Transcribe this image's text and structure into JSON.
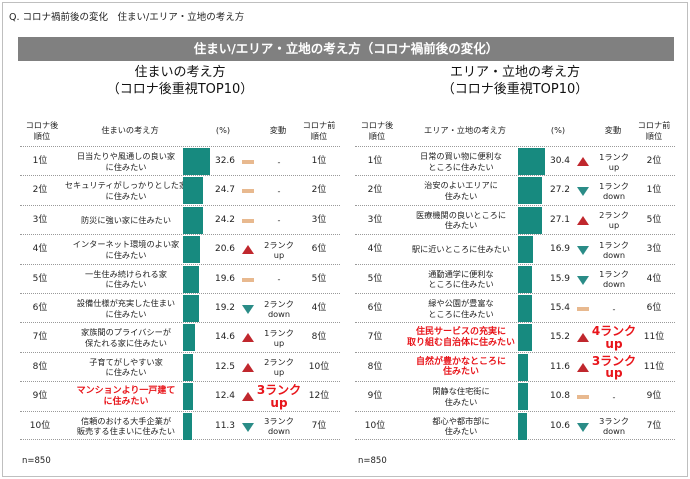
{
  "question": "Q. コロナ禍前後の変化　住まい/エリア・立地の考え方",
  "banner": "住まい/エリア・立地の考え方（コロナ禍前後の変化）",
  "colors": {
    "bar": "#178a7f",
    "up": "#c0272d",
    "down": "#2a8c87",
    "same": "#e8b98f",
    "highlight": "#e8151b",
    "banner_bg": "#808080"
  },
  "icons": {
    "up": "triangle-up-icon",
    "down": "triangle-down-icon",
    "same": "flat-bar-icon"
  },
  "headers": {
    "rank": "コロナ後 順位",
    "item_left": "住まいの考え方",
    "item_right": "エリア・立地の考え方",
    "pct": "(%)",
    "change": "変動",
    "prev": "コロナ前 順位"
  },
  "chart_data": [
    {
      "type": "bar",
      "title_line1": "住まいの考え方",
      "title_line2": "（コロナ後重視TOP10）",
      "n": "n=850",
      "xlim": [
        0,
        32.6
      ],
      "rows": [
        {
          "rank": "1位",
          "label": "日当たりや風通しの良い家 に住みたい",
          "value": 32.6,
          "value_label": "32.6",
          "trend": "same",
          "change": "-",
          "prev": "1位",
          "highlight": false
        },
        {
          "rank": "2位",
          "label": "セキュリティがしっかりとした家 に住みたい",
          "value": 24.7,
          "value_label": "24.7",
          "trend": "same",
          "change": "-",
          "prev": "2位",
          "highlight": false
        },
        {
          "rank": "3位",
          "label": "防災に強い家に住みたい",
          "value": 24.2,
          "value_label": "24.2",
          "trend": "same",
          "change": "-",
          "prev": "3位",
          "highlight": false
        },
        {
          "rank": "4位",
          "label": "インターネット環境のよい家 に住みたい",
          "value": 20.6,
          "value_label": "20.6",
          "trend": "up",
          "change": "2ランク up",
          "prev": "6位",
          "highlight": false
        },
        {
          "rank": "5位",
          "label": "一生住み続けられる家 に住みたい",
          "value": 19.6,
          "value_label": "19.6",
          "trend": "same",
          "change": "-",
          "prev": "5位",
          "highlight": false
        },
        {
          "rank": "6位",
          "label": "設備仕様が充実した住まい に住みたい",
          "value": 19.2,
          "value_label": "19.2",
          "trend": "down",
          "change": "2ランク down",
          "prev": "4位",
          "highlight": false
        },
        {
          "rank": "7位",
          "label": "家族間のプライバシーが 保たれる家に住みたい",
          "value": 14.6,
          "value_label": "14.6",
          "trend": "up",
          "change": "1ランク up",
          "prev": "8位",
          "highlight": false
        },
        {
          "rank": "8位",
          "label": "子育てがしやすい家 に住みたい",
          "value": 12.5,
          "value_label": "12.5",
          "trend": "up",
          "change": "2ランク up",
          "prev": "10位",
          "highlight": false
        },
        {
          "rank": "9位",
          "label": "マンションより一戸建て に住みたい",
          "value": 12.4,
          "value_label": "12.4",
          "trend": "up",
          "change": "3ランク up",
          "prev": "12位",
          "highlight": true
        },
        {
          "rank": "10位",
          "label": "信頼のおける大手企業が 販売する住まいに住みたい",
          "value": 11.3,
          "value_label": "11.3",
          "trend": "down",
          "change": "3ランク down",
          "prev": "7位",
          "highlight": false
        }
      ]
    },
    {
      "type": "bar",
      "title_line1": "エリア・立地の考え方",
      "title_line2": "（コロナ後重視TOP10）",
      "n": "n=850",
      "xlim": [
        0,
        30.4
      ],
      "rows": [
        {
          "rank": "1位",
          "label": "日常の買い物に便利な ところに住みたい",
          "value": 30.4,
          "value_label": "30.4",
          "trend": "up",
          "change": "1ランク up",
          "prev": "2位",
          "highlight": false
        },
        {
          "rank": "2位",
          "label": "治安のよいエリアに 住みたい",
          "value": 27.2,
          "value_label": "27.2",
          "trend": "down",
          "change": "1ランク down",
          "prev": "1位",
          "highlight": false
        },
        {
          "rank": "3位",
          "label": "医療機関の良いところに 住みたい",
          "value": 27.1,
          "value_label": "27.1",
          "trend": "up",
          "change": "2ランク up",
          "prev": "5位",
          "highlight": false
        },
        {
          "rank": "4位",
          "label": "駅に近いところに住みたい",
          "value": 16.9,
          "value_label": "16.9",
          "trend": "down",
          "change": "1ランク down",
          "prev": "3位",
          "highlight": false
        },
        {
          "rank": "5位",
          "label": "通勤通学に便利な ところに住みたい",
          "value": 15.9,
          "value_label": "15.9",
          "trend": "down",
          "change": "1ランク down",
          "prev": "4位",
          "highlight": false
        },
        {
          "rank": "6位",
          "label": "緑や公園が豊富な ところに住みたい",
          "value": 15.4,
          "value_label": "15.4",
          "trend": "same",
          "change": "-",
          "prev": "6位",
          "highlight": false
        },
        {
          "rank": "7位",
          "label": "住民サービスの充実に 取り組む自治体に住みたい",
          "value": 15.2,
          "value_label": "15.2",
          "trend": "up",
          "change": "4ランク up",
          "prev": "11位",
          "highlight": true
        },
        {
          "rank": "8位",
          "label": "自然が豊かなところに 住みたい",
          "value": 11.6,
          "value_label": "11.6",
          "trend": "up",
          "change": "3ランク up",
          "prev": "11位",
          "highlight": true
        },
        {
          "rank": "9位",
          "label": "閑静な住宅街に 住みたい",
          "value": 10.8,
          "value_label": "10.8",
          "trend": "same",
          "change": "-",
          "prev": "9位",
          "highlight": false
        },
        {
          "rank": "10位",
          "label": "都心や都市部に 住みたい",
          "value": 10.6,
          "value_label": "10.6",
          "trend": "down",
          "change": "3ランク down",
          "prev": "7位",
          "highlight": false
        }
      ]
    }
  ]
}
